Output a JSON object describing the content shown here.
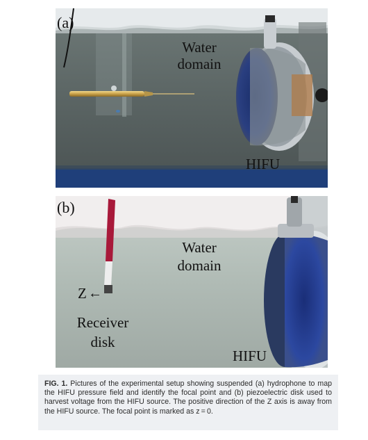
{
  "panel_a": {
    "letter": "(a)",
    "water_label": [
      "Water",
      "domain"
    ],
    "hifu_label": "HIFU"
  },
  "panel_b": {
    "letter": "(b)",
    "water_label": [
      "Water",
      "domain"
    ],
    "axis_label": "Z",
    "arrow": "←",
    "receiver_label": [
      "Receiver",
      "disk"
    ],
    "hifu_label": "HIFU"
  },
  "caption": {
    "figure_label": "FIG. 1.",
    "text": "Pictures of the experimental setup showing suspended (a) hydrophone to map the HIFU pressure field and identify the focal point and (b) piezoelectric disk used to harvest voltage from the HIFU source. The positive direction of the Z axis is away from the HIFU source. The focal point is marked as z = 0."
  }
}
